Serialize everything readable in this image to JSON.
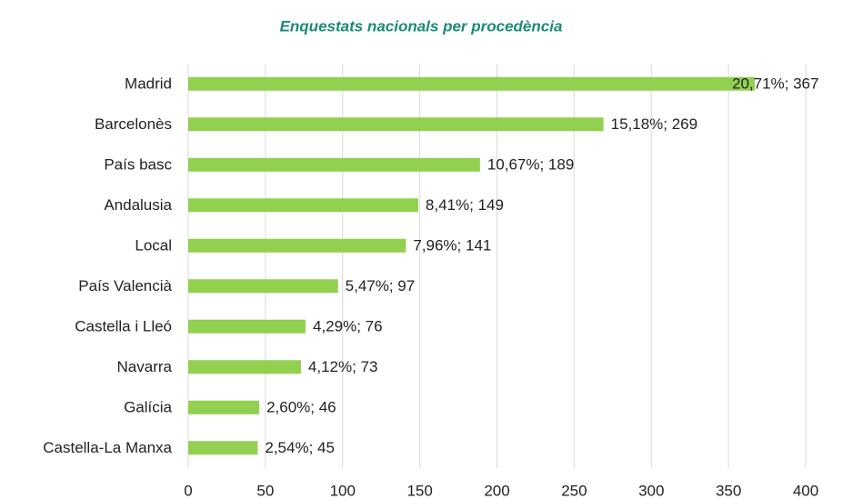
{
  "chart_data": {
    "type": "bar",
    "orientation": "horizontal",
    "title": "Enquestats nacionals per procedència",
    "categories": [
      "Madrid",
      "Barcelonès",
      "País basc",
      "Andalusia",
      "Local",
      "País Valencià",
      "Castella i Lleó",
      "Navarra",
      "Galícia",
      "Castella-La Manxa"
    ],
    "values": [
      367,
      269,
      189,
      149,
      141,
      97,
      76,
      73,
      46,
      45
    ],
    "value_labels": [
      "20,71%; 367",
      "15,18%; 269",
      "10,67%; 189",
      "8,41%; 149",
      "7,96%; 141",
      "5,47%; 97",
      "4,29%; 76",
      "4,12%; 73",
      "2,60%; 46",
      "2,54%; 45"
    ],
    "color": "#92d050",
    "xlim": [
      0,
      400
    ],
    "xticks": [
      0,
      50,
      100,
      150,
      200,
      250,
      300,
      350,
      400
    ],
    "grid": true
  }
}
